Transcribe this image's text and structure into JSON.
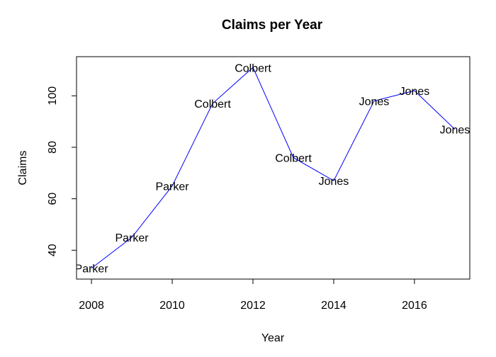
{
  "chart_data": {
    "type": "line",
    "title": "Claims per Year",
    "xlabel": "Year",
    "ylabel": "Claims",
    "x": [
      2008,
      2009,
      2010,
      2011,
      2012,
      2013,
      2014,
      2015,
      2016,
      2017
    ],
    "y": [
      33,
      45,
      65,
      97,
      111,
      76,
      67,
      98,
      102,
      87
    ],
    "point_labels": [
      "Parker",
      "Parker",
      "Parker",
      "Colbert",
      "Colbert",
      "Colbert",
      "Jones",
      "Jones",
      "Jones",
      "Jones"
    ],
    "xlim": [
      2007.63,
      2017.37
    ],
    "ylim": [
      28.8,
      115.2
    ],
    "x_ticks": [
      2008,
      2010,
      2012,
      2014,
      2016
    ],
    "y_ticks": [
      40,
      60,
      80,
      100
    ],
    "line_color": "#0000ff",
    "grid": false
  }
}
